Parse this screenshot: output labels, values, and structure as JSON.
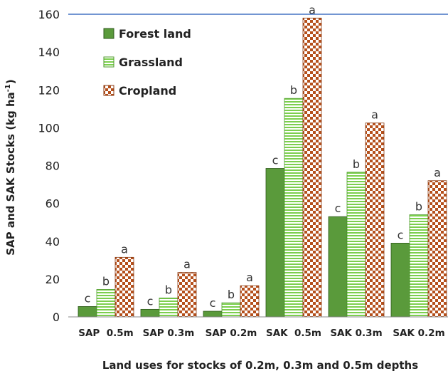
{
  "chart_data": {
    "type": "bar",
    "categories": [
      "SAP  0.5m",
      "SAP 0.3m",
      "SAP 0.2m",
      "SAK  0.5m",
      "SAK 0.3m",
      "SAK 0.2m"
    ],
    "series": [
      {
        "name": "Forest land",
        "values": [
          5.5,
          4,
          3,
          78.5,
          53,
          39
        ],
        "labels": [
          "c",
          "c",
          "c",
          "c",
          "c",
          "c"
        ]
      },
      {
        "name": "Grassland",
        "values": [
          14.5,
          10,
          7.5,
          115.5,
          76.5,
          54
        ],
        "labels": [
          "b",
          "b",
          "b",
          "b",
          "b",
          "b"
        ]
      },
      {
        "name": "Cropland",
        "values": [
          31.5,
          23.5,
          16.5,
          158,
          102.5,
          72
        ],
        "labels": [
          "a",
          "a",
          "a",
          "a",
          "a",
          "a"
        ]
      }
    ],
    "title": "",
    "ylabel_main": "SAP and SAK Stocks (kg ha",
    "ylabel_sup": "-1",
    "ylabel_close": ")",
    "xlabel": "Land uses for stocks of 0.2m, 0.3m and 0.5m depths",
    "ylim": [
      0,
      160
    ],
    "yticks": [
      0,
      20,
      40,
      60,
      80,
      100,
      120,
      140,
      160
    ],
    "grid": false,
    "legend_position": "top-left",
    "colors": {
      "forest": "#5a9a3b",
      "forest_edge": "#2f5a1c",
      "grass_stripe": "#7ccf4e",
      "grass_bg": "#ffffff",
      "crop_a": "#b5501c",
      "crop_b": "#ffffff",
      "top_line": "#4472c4",
      "axis": "#888888"
    }
  }
}
